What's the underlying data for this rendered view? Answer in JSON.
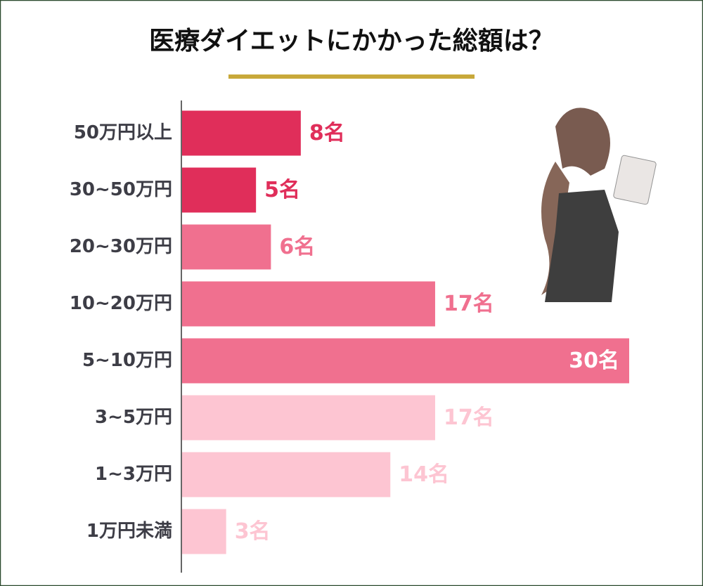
{
  "chart_data": {
    "type": "bar",
    "orientation": "horizontal",
    "title": "医療ダイエットにかかった総額は？",
    "categories": [
      "50万円以上",
      "30~50万円",
      "20~30万円",
      "10~20万円",
      "5~10万円",
      "3~5万円",
      "1~3万円",
      "1万円未満"
    ],
    "values": [
      8,
      5,
      6,
      17,
      30,
      17,
      14,
      3
    ],
    "value_labels": [
      "8名",
      "5名",
      "6名",
      "17名",
      "30名",
      "17名",
      "14名",
      "3名"
    ],
    "colors": [
      "#e02e5a",
      "#e02e5a",
      "#f0708f",
      "#f0708f",
      "#f0708f",
      "#fdc5d2",
      "#fdc5d2",
      "#fdc5d2"
    ]
  }
}
